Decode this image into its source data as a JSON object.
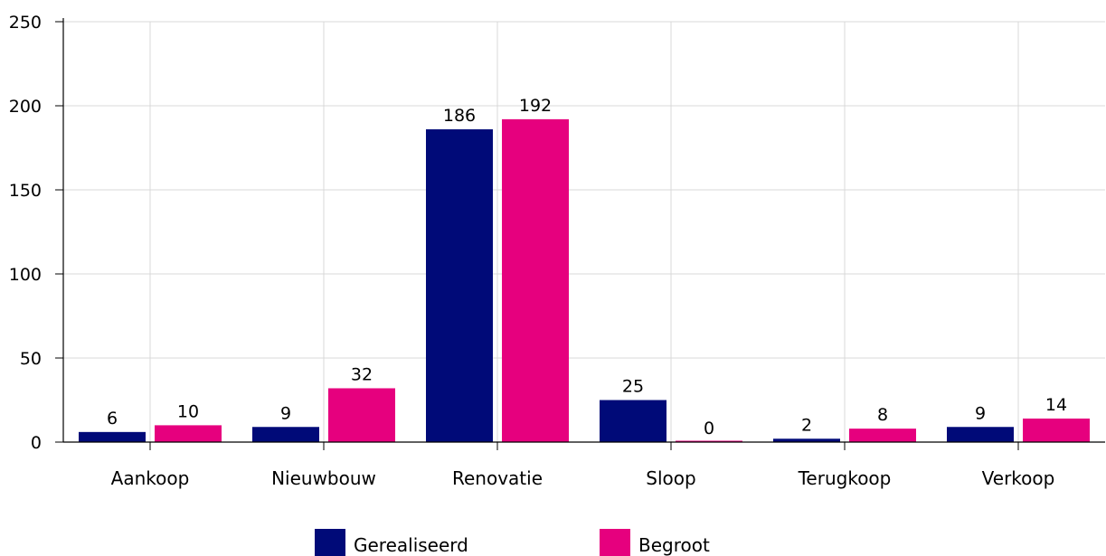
{
  "chart_data": {
    "type": "bar",
    "title": "",
    "xlabel": "",
    "ylabel": "",
    "categories": [
      "Aankoop",
      "Nieuwbouw",
      "Renovatie",
      "Sloop",
      "Terugkoop",
      "Verkoop"
    ],
    "series": [
      {
        "name": "Gerealiseerd",
        "color": "#000a78",
        "values": [
          6,
          9,
          186,
          25,
          2,
          9
        ]
      },
      {
        "name": "Begroot",
        "color": "#e6007e",
        "values": [
          10,
          32,
          192,
          0,
          8,
          14
        ]
      }
    ],
    "ylim": [
      0,
      250
    ],
    "yticks": [
      0,
      50,
      100,
      150,
      200,
      250
    ],
    "grid": true,
    "legend": "bottom-center",
    "data_labels": true
  }
}
